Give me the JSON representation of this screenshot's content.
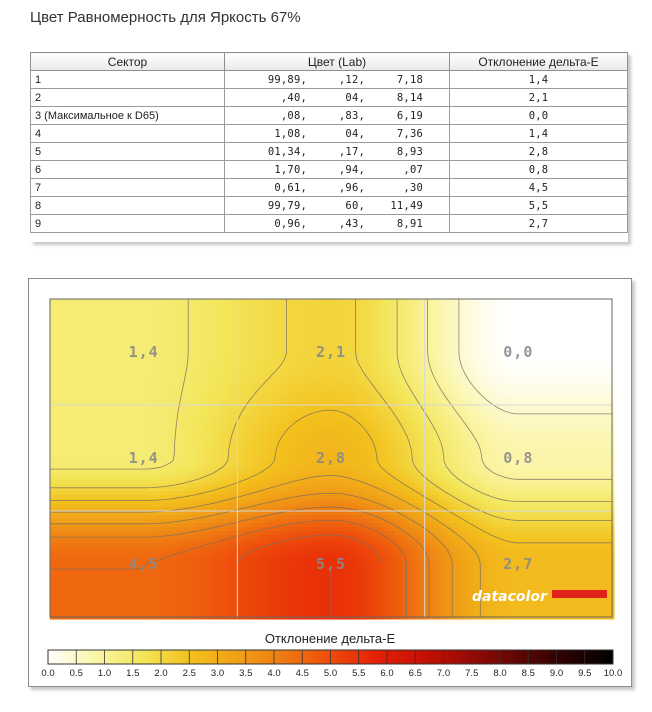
{
  "title": "Цвет Равномерность для Яркость 67%",
  "table": {
    "headers": [
      "Сектор",
      "Цвет (Lab)",
      "Отклонение дельта-E"
    ],
    "rows": [
      {
        "sector": "1",
        "lab": [
          "99,89,",
          ",12,",
          "7,18"
        ],
        "de": "1,4"
      },
      {
        "sector": "2",
        "lab": [
          ",40,",
          "04,",
          "8,14"
        ],
        "de": "2,1"
      },
      {
        "sector": "3 (Максимальное к D65)",
        "lab": [
          ",08,",
          ",83,",
          "6,19"
        ],
        "de": "0,0"
      },
      {
        "sector": "4",
        "lab": [
          "1,08,",
          "04,",
          "7,36"
        ],
        "de": "1,4"
      },
      {
        "sector": "5",
        "lab": [
          "01,34,",
          ",17,",
          "8,93"
        ],
        "de": "2,8"
      },
      {
        "sector": "6",
        "lab": [
          "1,70,",
          ",94,",
          ",07"
        ],
        "de": "0,8"
      },
      {
        "sector": "7",
        "lab": [
          "0,61,",
          ",96,",
          ",30"
        ],
        "de": "4,5"
      },
      {
        "sector": "8",
        "lab": [
          "99,79,",
          "60,",
          "11,49"
        ],
        "de": "5,5"
      },
      {
        "sector": "9",
        "lab": [
          "0,96,",
          ",43,",
          "8,91"
        ],
        "de": "2,7"
      }
    ]
  },
  "chart_data": {
    "type": "heatmap",
    "grid_rows": 3,
    "grid_cols": 3,
    "cell_labels": [
      "1,4",
      "2,1",
      "0,0",
      "1,4",
      "2,8",
      "0,8",
      "4,5",
      "5,5",
      "2,7"
    ],
    "values": [
      [
        1.4,
        2.1,
        0.0
      ],
      [
        1.4,
        2.8,
        0.8
      ],
      [
        4.5,
        5.5,
        2.7
      ]
    ],
    "legend_title": "Отклонение дельта-E",
    "legend_ticks": [
      "0.0",
      "0.5",
      "1.0",
      "1.5",
      "2.0",
      "2.5",
      "3.0",
      "3.5",
      "4.0",
      "4.5",
      "5.0",
      "5.5",
      "6.0",
      "6.5",
      "7.0",
      "7.5",
      "8.0",
      "8.5",
      "9.0",
      "9.5",
      "10.0"
    ],
    "legend_range": [
      0,
      10
    ],
    "brand": "datacolor",
    "colors": {
      "scale": [
        "#ffffff",
        "#fbf5a8",
        "#f3e65a",
        "#f3c21e",
        "#f0a117",
        "#ef7a12",
        "#ee4c0b",
        "#e61e06",
        "#c41003",
        "#960a05",
        "#5e0603",
        "#2a0202",
        "#000000"
      ],
      "brand_bar": "#e0231a"
    }
  }
}
